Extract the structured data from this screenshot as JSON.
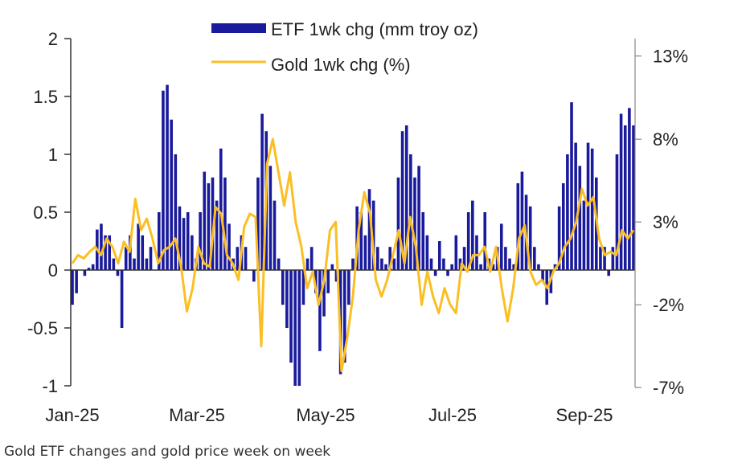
{
  "caption": "Gold ETF changes and gold price week on week",
  "chart_data": {
    "type": "bar+line",
    "title": "",
    "legend": {
      "position": "top-center",
      "entries": [
        "ETF 1wk chg  (mm troy oz)",
        "Gold 1wk chg (%)"
      ]
    },
    "x_tick_labels": [
      "Jan-25",
      "Mar-25",
      "May-25",
      "Jul-25",
      "Sep-25"
    ],
    "x_range": [
      "2025-01",
      "2025-09"
    ],
    "left_axis": {
      "label": "ETF 1wk chg (mm troy oz)",
      "ylim": [
        -1,
        2
      ],
      "ticks": [
        2,
        1.5,
        1,
        0.5,
        0,
        -0.5,
        -1
      ],
      "tick_labels": [
        "2",
        "1.5",
        "1",
        "0.5",
        "0",
        "-0.5",
        "-1"
      ]
    },
    "right_axis": {
      "label": "Gold 1wk chg (%)",
      "ylim": [
        -7,
        13
      ],
      "ticks": [
        13,
        8,
        3,
        -2,
        -7
      ],
      "tick_labels": [
        "13%",
        "8%",
        "3%",
        "-2%",
        "-7%"
      ]
    },
    "series": [
      {
        "name": "ETF 1wk chg  (mm troy oz)",
        "type": "bar",
        "axis": "left",
        "color": "#1a1a9c",
        "values": [
          -0.3,
          -0.2,
          0.0,
          -0.05,
          0.02,
          0.05,
          0.35,
          0.4,
          0.3,
          0.3,
          0.1,
          -0.05,
          -0.5,
          0.2,
          0.3,
          0.1,
          0.4,
          0.3,
          0.1,
          0.2,
          0.0,
          0.5,
          1.55,
          1.6,
          1.3,
          1.0,
          0.55,
          0.45,
          0.5,
          0.3,
          0.1,
          0.5,
          0.85,
          0.75,
          0.8,
          0.6,
          1.05,
          0.8,
          0.4,
          0.1,
          0.2,
          0.3,
          0.2,
          0.0,
          -0.1,
          0.8,
          1.35,
          1.2,
          0.9,
          0.6,
          0.1,
          -0.3,
          -0.5,
          -0.8,
          -1.0,
          -1.0,
          -0.3,
          0.1,
          0.2,
          -0.2,
          -0.7,
          -0.4,
          -0.2,
          0.05,
          -0.1,
          -0.9,
          -0.8,
          -0.3,
          0.1,
          0.55,
          0.5,
          0.3,
          0.7,
          0.6,
          0.2,
          0.1,
          0.05,
          0.2,
          0.1,
          0.8,
          1.2,
          1.25,
          1.0,
          0.8,
          0.9,
          0.5,
          0.3,
          0.1,
          -0.05,
          0.25,
          0.1,
          -0.05,
          0.05,
          0.3,
          0.1,
          0.2,
          0.5,
          0.6,
          0.3,
          0.05,
          0.5,
          0.1,
          0.05,
          0.2,
          0.4,
          0.2,
          0.1,
          0.05,
          0.75,
          0.85,
          0.65,
          0.55,
          0.2,
          0.05,
          -0.1,
          -0.3,
          -0.2,
          0.05,
          0.55,
          0.75,
          1.0,
          1.45,
          1.1,
          0.9,
          0.6,
          1.1,
          1.05,
          0.8,
          0.2,
          0.2,
          -0.05,
          0.2,
          1.0,
          1.35,
          1.25,
          1.4,
          1.25
        ]
      },
      {
        "name": "Gold 1wk chg (%)",
        "type": "line",
        "axis": "right",
        "color": "#fbbf24",
        "values": [
          0.5,
          1.0,
          0.8,
          1.2,
          1.5,
          1.0,
          2.0,
          1.5,
          0.5,
          1.8,
          1.2,
          4.4,
          2.5,
          3.2,
          2.0,
          0.5,
          1.3,
          1.5,
          2.0,
          0.3,
          -2.4,
          -1.0,
          1.5,
          0.5,
          0.3,
          3.9,
          3.5,
          1.0,
          0.5,
          -0.5,
          2.7,
          3.5,
          3.3,
          -4.5,
          6.5,
          8.0,
          6.0,
          4.0,
          6.0,
          3.0,
          1.5,
          -1.0,
          0.0,
          -2.0,
          -0.5,
          2.5,
          3.0,
          -6.0,
          -4.0,
          -1.5,
          2.5,
          4.8,
          3.5,
          -0.5,
          -1.5,
          -0.5,
          1.0,
          2.5,
          0.5,
          3.3,
          1.5,
          -2.0,
          0.0,
          -1.5,
          -2.5,
          -1.0,
          -2.0,
          -2.5,
          0.5,
          0.0,
          1.0,
          1.0,
          1.5,
          0.0,
          1.5,
          -1.0,
          -3.0,
          -1.0,
          2.0,
          2.8,
          0.0,
          -0.8,
          -0.5,
          -1.0,
          0.0,
          0.5,
          1.5,
          2.0,
          3.0,
          5.0,
          4.0,
          4.5,
          2.0,
          1.0,
          1.2,
          1.0,
          2.5,
          2.0,
          2.5
        ]
      }
    ]
  }
}
